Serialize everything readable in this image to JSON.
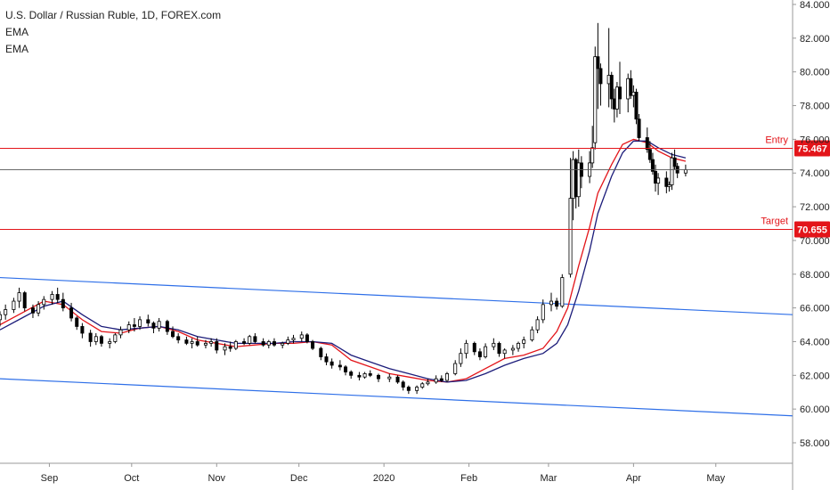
{
  "legend": {
    "symbol": "U.S. Dollar / Russian Ruble, 1D, FOREX.com",
    "indicator_1": "EMA",
    "indicator_2": "EMA"
  },
  "colors": {
    "candle": "#000000",
    "ema_fast": "#e3151a",
    "ema_slow": "#1c1c7a",
    "channel": "#2e6fe8",
    "level": "#e3151a",
    "last_price_line": "#555555",
    "axis": "#222222"
  },
  "chart_data": {
    "type": "candlestick",
    "title": "U.S. Dollar / Russian Ruble, 1D, FOREX.com",
    "y_ticks": [
      "58.000",
      "60.000",
      "62.000",
      "64.000",
      "66.000",
      "68.000",
      "70.000",
      "72.000",
      "74.000",
      "76.000",
      "78.000",
      "80.000",
      "82.000",
      "84.000"
    ],
    "ylim": [
      57,
      84.3
    ],
    "x_ticks": [
      "Sep",
      "Oct",
      "Nov",
      "Dec",
      "2020",
      "Feb",
      "Mar",
      "Apr",
      "May"
    ],
    "x_range": [
      "2019-08-14",
      "2020-05-29"
    ],
    "levels": [
      {
        "label": "Entry",
        "value": 75.467,
        "tag": "75.467"
      },
      {
        "label": "Target",
        "value": 70.655,
        "tag": "70.655"
      }
    ],
    "last_price": 74.2,
    "channel_lines": [
      {
        "points": [
          [
            "2019-08-14",
            67.8
          ],
          [
            "2020-05-29",
            65.6
          ]
        ]
      },
      {
        "points": [
          [
            "2019-08-14",
            61.8
          ],
          [
            "2020-05-29",
            59.6
          ]
        ]
      }
    ],
    "series": [
      {
        "name": "EMA",
        "type": "line",
        "points": [
          [
            "2019-08-14",
            65.0
          ],
          [
            "2019-08-22",
            65.7
          ],
          [
            "2019-08-30",
            66.4
          ],
          [
            "2019-09-06",
            66.2
          ],
          [
            "2019-09-13",
            65.3
          ],
          [
            "2019-09-20",
            64.6
          ],
          [
            "2019-09-27",
            64.5
          ],
          [
            "2019-10-04",
            64.8
          ],
          [
            "2019-10-11",
            64.9
          ],
          [
            "2019-10-18",
            64.6
          ],
          [
            "2019-10-25",
            64.1
          ],
          [
            "2019-11-01",
            63.9
          ],
          [
            "2019-11-08",
            63.7
          ],
          [
            "2019-11-15",
            63.8
          ],
          [
            "2019-11-22",
            63.9
          ],
          [
            "2019-11-29",
            63.9
          ],
          [
            "2019-12-06",
            64.0
          ],
          [
            "2019-12-13",
            63.8
          ],
          [
            "2019-12-20",
            62.9
          ],
          [
            "2019-12-27",
            62.5
          ],
          [
            "2020-01-03",
            62.1
          ],
          [
            "2020-01-10",
            61.9
          ],
          [
            "2020-01-17",
            61.7
          ],
          [
            "2020-01-24",
            61.6
          ],
          [
            "2020-01-31",
            61.8
          ],
          [
            "2020-02-07",
            62.4
          ],
          [
            "2020-02-14",
            63.0
          ],
          [
            "2020-02-21",
            63.2
          ],
          [
            "2020-02-28",
            63.6
          ],
          [
            "2020-03-04",
            64.6
          ],
          [
            "2020-03-08",
            66.0
          ],
          [
            "2020-03-12",
            68.5
          ],
          [
            "2020-03-16",
            70.8
          ],
          [
            "2020-03-19",
            72.8
          ],
          [
            "2020-03-24",
            74.5
          ],
          [
            "2020-03-28",
            75.7
          ],
          [
            "2020-04-01",
            76.0
          ],
          [
            "2020-04-06",
            75.8
          ],
          [
            "2020-04-10",
            75.3
          ],
          [
            "2020-04-15",
            74.9
          ],
          [
            "2020-04-20",
            74.7
          ]
        ]
      },
      {
        "name": "EMA",
        "type": "line",
        "points": [
          [
            "2019-08-14",
            64.7
          ],
          [
            "2019-08-22",
            65.4
          ],
          [
            "2019-08-30",
            66.1
          ],
          [
            "2019-09-06",
            66.4
          ],
          [
            "2019-09-13",
            65.6
          ],
          [
            "2019-09-20",
            64.9
          ],
          [
            "2019-09-27",
            64.7
          ],
          [
            "2019-10-04",
            64.8
          ],
          [
            "2019-10-11",
            64.9
          ],
          [
            "2019-10-18",
            64.7
          ],
          [
            "2019-10-25",
            64.3
          ],
          [
            "2019-11-01",
            64.1
          ],
          [
            "2019-11-08",
            63.9
          ],
          [
            "2019-11-15",
            63.9
          ],
          [
            "2019-11-22",
            63.9
          ],
          [
            "2019-11-29",
            64.0
          ],
          [
            "2019-12-06",
            64.0
          ],
          [
            "2019-12-13",
            63.9
          ],
          [
            "2019-12-20",
            63.2
          ],
          [
            "2019-12-27",
            62.8
          ],
          [
            "2020-01-03",
            62.4
          ],
          [
            "2020-01-10",
            62.1
          ],
          [
            "2020-01-17",
            61.8
          ],
          [
            "2020-01-24",
            61.6
          ],
          [
            "2020-01-31",
            61.7
          ],
          [
            "2020-02-07",
            62.1
          ],
          [
            "2020-02-14",
            62.6
          ],
          [
            "2020-02-21",
            63.0
          ],
          [
            "2020-02-28",
            63.3
          ],
          [
            "2020-03-04",
            63.9
          ],
          [
            "2020-03-08",
            65.0
          ],
          [
            "2020-03-12",
            67.0
          ],
          [
            "2020-03-16",
            69.4
          ],
          [
            "2020-03-19",
            71.6
          ],
          [
            "2020-03-24",
            73.8
          ],
          [
            "2020-03-28",
            75.2
          ],
          [
            "2020-04-01",
            75.9
          ],
          [
            "2020-04-06",
            75.9
          ],
          [
            "2020-04-10",
            75.5
          ],
          [
            "2020-04-15",
            75.1
          ],
          [
            "2020-04-20",
            74.9
          ]
        ]
      }
    ],
    "candles_columns": [
      "date",
      "open",
      "high",
      "low",
      "close"
    ],
    "candles": [
      [
        "2019-08-14",
        65.3,
        65.8,
        64.9,
        65.6
      ],
      [
        "2019-08-16",
        65.6,
        66.2,
        65.3,
        65.9
      ],
      [
        "2019-08-19",
        65.9,
        66.6,
        65.7,
        66.4
      ],
      [
        "2019-08-21",
        66.4,
        67.2,
        66.0,
        66.9
      ],
      [
        "2019-08-23",
        66.9,
        67.0,
        65.8,
        66.0
      ],
      [
        "2019-08-26",
        66.0,
        66.2,
        65.4,
        65.7
      ],
      [
        "2019-08-28",
        65.7,
        66.4,
        65.5,
        66.2
      ],
      [
        "2019-08-30",
        66.2,
        66.7,
        65.9,
        66.5
      ],
      [
        "2019-09-02",
        66.5,
        67.0,
        66.2,
        66.8
      ],
      [
        "2019-09-04",
        66.8,
        67.2,
        66.3,
        66.5
      ],
      [
        "2019-09-06",
        66.5,
        66.9,
        65.8,
        66.0
      ],
      [
        "2019-09-09",
        66.0,
        66.3,
        65.2,
        65.4
      ],
      [
        "2019-09-11",
        65.4,
        65.5,
        64.7,
        64.9
      ],
      [
        "2019-09-13",
        64.9,
        65.1,
        64.2,
        64.5
      ],
      [
        "2019-09-16",
        64.5,
        64.7,
        63.7,
        64.0
      ],
      [
        "2019-09-18",
        64.0,
        64.5,
        63.8,
        64.3
      ],
      [
        "2019-09-20",
        64.3,
        64.4,
        63.7,
        63.9
      ],
      [
        "2019-09-23",
        63.9,
        64.2,
        63.6,
        64.0
      ],
      [
        "2019-09-25",
        64.0,
        64.5,
        63.9,
        64.4
      ],
      [
        "2019-09-27",
        64.4,
        64.9,
        64.2,
        64.7
      ],
      [
        "2019-09-30",
        64.7,
        65.2,
        64.5,
        65.0
      ],
      [
        "2019-10-02",
        65.0,
        65.4,
        64.6,
        64.9
      ],
      [
        "2019-10-04",
        64.9,
        65.5,
        64.7,
        65.3
      ],
      [
        "2019-10-07",
        65.3,
        65.6,
        64.9,
        65.1
      ],
      [
        "2019-10-09",
        65.1,
        65.2,
        64.5,
        64.8
      ],
      [
        "2019-10-11",
        64.8,
        65.4,
        64.6,
        65.2
      ],
      [
        "2019-10-14",
        65.2,
        65.3,
        64.4,
        64.6
      ],
      [
        "2019-10-16",
        64.6,
        64.9,
        64.2,
        64.3
      ],
      [
        "2019-10-18",
        64.3,
        64.5,
        63.9,
        64.1
      ],
      [
        "2019-10-21",
        64.1,
        64.3,
        63.8,
        63.9
      ],
      [
        "2019-10-23",
        63.9,
        64.2,
        63.6,
        64.0
      ],
      [
        "2019-10-25",
        64.0,
        64.3,
        63.7,
        63.8
      ],
      [
        "2019-10-28",
        63.8,
        64.1,
        63.6,
        63.9
      ],
      [
        "2019-10-30",
        63.9,
        64.2,
        63.7,
        64.0
      ],
      [
        "2019-11-01",
        64.0,
        64.2,
        63.3,
        63.5
      ],
      [
        "2019-11-04",
        63.5,
        63.9,
        63.2,
        63.7
      ],
      [
        "2019-11-06",
        63.7,
        64.0,
        63.4,
        63.6
      ],
      [
        "2019-11-08",
        63.6,
        64.1,
        63.5,
        64.0
      ],
      [
        "2019-11-11",
        64.0,
        64.2,
        63.8,
        63.9
      ],
      [
        "2019-11-13",
        63.9,
        64.4,
        63.8,
        64.3
      ],
      [
        "2019-11-15",
        64.3,
        64.5,
        63.9,
        64.0
      ],
      [
        "2019-11-18",
        64.0,
        64.2,
        63.7,
        63.8
      ],
      [
        "2019-11-20",
        63.8,
        64.1,
        63.6,
        64.0
      ],
      [
        "2019-11-22",
        64.0,
        64.2,
        63.7,
        63.8
      ],
      [
        "2019-11-25",
        63.8,
        64.0,
        63.6,
        63.9
      ],
      [
        "2019-11-27",
        63.9,
        64.3,
        63.8,
        64.1
      ],
      [
        "2019-11-29",
        64.1,
        64.4,
        63.9,
        64.2
      ],
      [
        "2019-12-02",
        64.2,
        64.6,
        64.0,
        64.4
      ],
      [
        "2019-12-04",
        64.4,
        64.5,
        63.9,
        64.0
      ],
      [
        "2019-12-06",
        64.0,
        64.1,
        63.5,
        63.6
      ],
      [
        "2019-12-09",
        63.6,
        63.7,
        62.9,
        63.1
      ],
      [
        "2019-12-11",
        63.1,
        63.3,
        62.6,
        62.8
      ],
      [
        "2019-12-13",
        62.8,
        63.0,
        62.4,
        62.6
      ],
      [
        "2019-12-16",
        62.6,
        62.9,
        62.3,
        62.5
      ],
      [
        "2019-12-18",
        62.5,
        62.6,
        62.0,
        62.2
      ],
      [
        "2019-12-20",
        62.2,
        62.3,
        61.8,
        62.0
      ],
      [
        "2019-12-23",
        62.0,
        62.2,
        61.7,
        61.9
      ],
      [
        "2019-12-25",
        61.9,
        62.2,
        61.8,
        62.1
      ],
      [
        "2019-12-27",
        62.1,
        62.3,
        61.9,
        62.0
      ],
      [
        "2019-12-30",
        62.0,
        62.1,
        61.6,
        61.8
      ],
      [
        "2020-01-03",
        61.8,
        62.1,
        61.6,
        61.9
      ],
      [
        "2020-01-06",
        61.9,
        62.0,
        61.5,
        61.6
      ],
      [
        "2020-01-08",
        61.6,
        61.7,
        61.1,
        61.3
      ],
      [
        "2020-01-10",
        61.3,
        61.4,
        60.9,
        61.1
      ],
      [
        "2020-01-13",
        61.1,
        61.4,
        60.9,
        61.3
      ],
      [
        "2020-01-15",
        61.3,
        61.6,
        61.2,
        61.5
      ],
      [
        "2020-01-17",
        61.5,
        61.8,
        61.4,
        61.6
      ],
      [
        "2020-01-20",
        61.6,
        62.0,
        61.5,
        61.8
      ],
      [
        "2020-01-22",
        61.8,
        62.0,
        61.6,
        61.7
      ],
      [
        "2020-01-24",
        61.7,
        62.2,
        61.6,
        62.1
      ],
      [
        "2020-01-27",
        62.1,
        62.9,
        62.0,
        62.7
      ],
      [
        "2020-01-29",
        62.7,
        63.6,
        62.5,
        63.3
      ],
      [
        "2020-01-31",
        63.3,
        64.1,
        63.0,
        63.9
      ],
      [
        "2020-02-03",
        63.9,
        64.0,
        63.2,
        63.4
      ],
      [
        "2020-02-05",
        63.4,
        63.6,
        62.9,
        63.1
      ],
      [
        "2020-02-07",
        63.1,
        63.9,
        63.0,
        63.7
      ],
      [
        "2020-02-10",
        63.7,
        64.2,
        63.5,
        63.9
      ],
      [
        "2020-02-12",
        63.9,
        64.0,
        63.1,
        63.3
      ],
      [
        "2020-02-14",
        63.3,
        63.6,
        63.0,
        63.5
      ],
      [
        "2020-02-17",
        63.5,
        63.8,
        63.2,
        63.6
      ],
      [
        "2020-02-19",
        63.6,
        64.0,
        63.4,
        63.9
      ],
      [
        "2020-02-21",
        63.9,
        64.3,
        63.6,
        64.1
      ],
      [
        "2020-02-24",
        64.1,
        64.9,
        64.0,
        64.7
      ],
      [
        "2020-02-26",
        64.7,
        65.5,
        64.5,
        65.3
      ],
      [
        "2020-02-28",
        65.3,
        66.5,
        65.1,
        66.2
      ],
      [
        "2020-03-02",
        66.2,
        66.9,
        65.8,
        66.4
      ],
      [
        "2020-03-04",
        66.4,
        66.6,
        65.9,
        66.1
      ],
      [
        "2020-03-06",
        66.1,
        68.0,
        66.0,
        67.8
      ],
      [
        "2020-03-09",
        68.0,
        74.9,
        67.8,
        72.5
      ],
      [
        "2020-03-10",
        72.5,
        75.3,
        71.2,
        74.8
      ],
      [
        "2020-03-11",
        74.8,
        74.9,
        71.9,
        72.6
      ],
      [
        "2020-03-12",
        72.6,
        75.4,
        72.0,
        74.6
      ],
      [
        "2020-03-13",
        74.6,
        75.0,
        73.1,
        73.8
      ],
      [
        "2020-03-16",
        73.8,
        75.3,
        73.4,
        74.6
      ],
      [
        "2020-03-17",
        74.6,
        76.8,
        74.3,
        75.5
      ],
      [
        "2020-03-18",
        75.8,
        81.5,
        75.4,
        80.9
      ],
      [
        "2020-03-19",
        80.9,
        82.9,
        77.8,
        80.2
      ],
      [
        "2020-03-20",
        80.2,
        80.5,
        78.0,
        79.3
      ],
      [
        "2020-03-23",
        79.3,
        82.6,
        77.9,
        79.8
      ],
      [
        "2020-03-24",
        79.8,
        80.0,
        77.8,
        78.4
      ],
      [
        "2020-03-25",
        78.4,
        79.0,
        77.0,
        77.8
      ],
      [
        "2020-03-26",
        77.8,
        79.4,
        77.3,
        79.1
      ],
      [
        "2020-03-27",
        79.1,
        80.6,
        77.5,
        78.4
      ],
      [
        "2020-03-30",
        78.4,
        79.9,
        77.6,
        79.6
      ],
      [
        "2020-03-31",
        79.6,
        80.1,
        78.4,
        78.6
      ],
      [
        "2020-04-01",
        78.6,
        79.2,
        77.9,
        78.8
      ],
      [
        "2020-04-02",
        78.8,
        79.0,
        76.9,
        77.2
      ],
      [
        "2020-04-03",
        77.2,
        77.5,
        75.9,
        76.1
      ],
      [
        "2020-04-06",
        76.1,
        76.7,
        75.2,
        75.4
      ],
      [
        "2020-04-07",
        75.4,
        75.9,
        74.6,
        74.8
      ],
      [
        "2020-04-08",
        74.8,
        75.2,
        73.9,
        74.1
      ],
      [
        "2020-04-09",
        74.1,
        74.5,
        72.9,
        73.4
      ],
      [
        "2020-04-10",
        73.4,
        74.0,
        72.7,
        73.7
      ],
      [
        "2020-04-13",
        73.7,
        74.1,
        72.8,
        73.2
      ],
      [
        "2020-04-14",
        73.2,
        73.5,
        72.9,
        73.3
      ],
      [
        "2020-04-15",
        73.3,
        75.2,
        73.0,
        74.9
      ],
      [
        "2020-04-16",
        74.9,
        75.4,
        74.2,
        74.4
      ],
      [
        "2020-04-17",
        74.4,
        74.6,
        73.7,
        74.0
      ],
      [
        "2020-04-20",
        74.0,
        74.5,
        73.8,
        74.2
      ]
    ]
  }
}
